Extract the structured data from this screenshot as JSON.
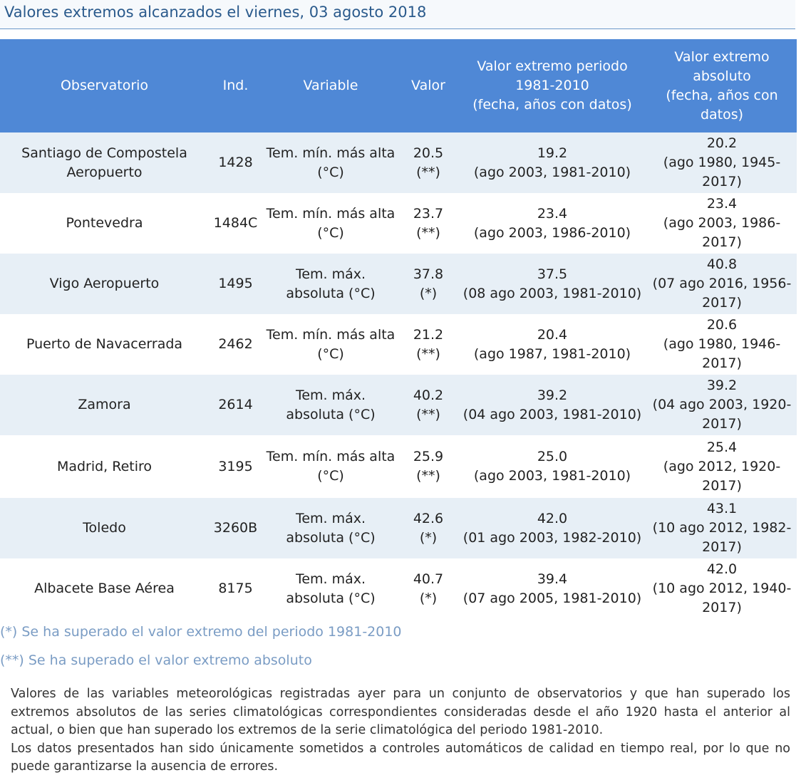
{
  "title": "Valores extremos alcanzados el viernes, 03 agosto 2018",
  "table": {
    "headers": {
      "observatorio": "Observatorio",
      "ind": "Ind.",
      "variable": "Variable",
      "valor": "Valor",
      "periodo_line1": "Valor extremo periodo",
      "periodo_line2": "1981-2010",
      "periodo_line3": "(fecha, años con datos)",
      "absoluto_line1": "Valor extremo",
      "absoluto_line2": "absoluto",
      "absoluto_line3": "(fecha, años con",
      "absoluto_line4": "datos)"
    },
    "rows": [
      {
        "obs_line1": "Santiago de Compostela",
        "obs_line2": "Aeropuerto",
        "ind": "1428",
        "var_line1": "Tem. mín. más alta",
        "var_line2": "(°C)",
        "val_line1": "20.5",
        "val_line2": "(**)",
        "per_line1": "19.2",
        "per_line2": "(ago 2003, 1981-2010)",
        "abs_line1": "20.2",
        "abs_line2": "(ago 1980, 1945-",
        "abs_line3": "2017)"
      },
      {
        "obs_line1": "Pontevedra",
        "obs_line2": "",
        "ind": "1484C",
        "var_line1": "Tem. mín. más alta",
        "var_line2": "(°C)",
        "val_line1": "23.7",
        "val_line2": "(**)",
        "per_line1": "23.4",
        "per_line2": "(ago 2003, 1986-2010)",
        "abs_line1": "23.4",
        "abs_line2": "(ago 2003, 1986-",
        "abs_line3": "2017)"
      },
      {
        "obs_line1": "Vigo Aeropuerto",
        "obs_line2": "",
        "ind": "1495",
        "var_line1": "Tem. máx.",
        "var_line2": "absoluta (°C)",
        "val_line1": "37.8",
        "val_line2": "(*)",
        "per_line1": "37.5",
        "per_line2": "(08 ago 2003, 1981-2010)",
        "abs_line1": "40.8",
        "abs_line2": "(07 ago 2016, 1956-",
        "abs_line3": "2017)"
      },
      {
        "obs_line1": "Puerto de Navacerrada",
        "obs_line2": "",
        "ind": "2462",
        "var_line1": "Tem. mín. más alta",
        "var_line2": "(°C)",
        "val_line1": "21.2",
        "val_line2": "(**)",
        "per_line1": "20.4",
        "per_line2": "(ago 1987, 1981-2010)",
        "abs_line1": "20.6",
        "abs_line2": "(ago 1980, 1946-",
        "abs_line3": "2017)"
      },
      {
        "obs_line1": "Zamora",
        "obs_line2": "",
        "ind": "2614",
        "var_line1": "Tem. máx.",
        "var_line2": "absoluta (°C)",
        "val_line1": "40.2",
        "val_line2": "(**)",
        "per_line1": "39.2",
        "per_line2": "(04 ago 2003, 1981-2010)",
        "abs_line1": "39.2",
        "abs_line2": "(04 ago 2003, 1920-",
        "abs_line3": "2017)"
      },
      {
        "obs_line1": "Madrid, Retiro",
        "obs_line2": "",
        "ind": "3195",
        "var_line1": "Tem. mín. más alta",
        "var_line2": "(°C)",
        "val_line1": "25.9",
        "val_line2": "(**)",
        "per_line1": "25.0",
        "per_line2": "(ago 2003, 1981-2010)",
        "abs_line1": "25.4",
        "abs_line2": "(ago 2012, 1920-",
        "abs_line3": "2017)"
      },
      {
        "obs_line1": "Toledo",
        "obs_line2": "",
        "ind": "3260B",
        "var_line1": "Tem. máx.",
        "var_line2": "absoluta (°C)",
        "val_line1": "42.6",
        "val_line2": "(*)",
        "per_line1": "42.0",
        "per_line2": "(01 ago 2003, 1982-2010)",
        "abs_line1": "43.1",
        "abs_line2": "(10 ago 2012, 1982-",
        "abs_line3": "2017)"
      },
      {
        "obs_line1": "Albacete Base Aérea",
        "obs_line2": "",
        "ind": "8175",
        "var_line1": "Tem. máx.",
        "var_line2": "absoluta (°C)",
        "val_line1": "40.7",
        "val_line2": "(*)",
        "per_line1": "39.4",
        "per_line2": "(07 ago 2005, 1981-2010)",
        "abs_line1": "42.0",
        "abs_line2": "(10 ago 2012, 1940-",
        "abs_line3": "2017)"
      }
    ]
  },
  "notes": {
    "note1": "(*) Se ha superado el valor extremo del periodo 1981-2010",
    "note2": "(**) Se ha superado el valor extremo absoluto"
  },
  "description": {
    "p1": "Valores de las variables meteorológicas registradas ayer para un conjunto de observatorios y que han superado los extremos absolutos de las series climatológicas correspondientes consideradas desde el año 1920 hasta el anterior al actual, o bien que han superado los extremos de la serie climatológica del periodo 1981-2010.",
    "p2": "Los datos presentados han sido únicamente sometidos a controles automáticos de calidad en tiempo real, por lo que no puede garantizarse la ausencia de errores."
  }
}
